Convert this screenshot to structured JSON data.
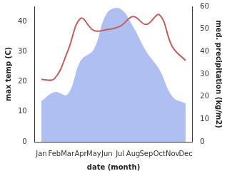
{
  "chart_data": {
    "type": "line",
    "x_label": "date (month)",
    "y_label": "max temp (C)",
    "y2_label": "med. precipitation (kg/m2)",
    "categories": [
      "Jan",
      "Feb",
      "Mar",
      "Apr",
      "May",
      "Jun",
      "Jul",
      "Aug",
      "Sep",
      "Oct",
      "Nov",
      "Dec"
    ],
    "series": [
      {
        "name": "med. precipitation",
        "type": "area",
        "axis": "y2",
        "color": "#b0bff2",
        "values": [
          18,
          22,
          21,
          36,
          41,
          57,
          59,
          51,
          40,
          32,
          20,
          17
        ]
      },
      {
        "name": "max temp",
        "type": "line",
        "color": "#c0605e",
        "values": [
          20.7,
          21,
          30,
          41,
          37,
          37.3,
          38.4,
          41.6,
          39,
          42.2,
          31.5,
          27
        ]
      }
    ],
    "ylim": [
      0,
      45
    ],
    "yticks": [
      0,
      10,
      20,
      30,
      40
    ],
    "y2lim": [
      0,
      60
    ],
    "y2ticks": [
      0,
      10,
      20,
      30,
      40,
      50,
      60
    ],
    "grid": false
  }
}
